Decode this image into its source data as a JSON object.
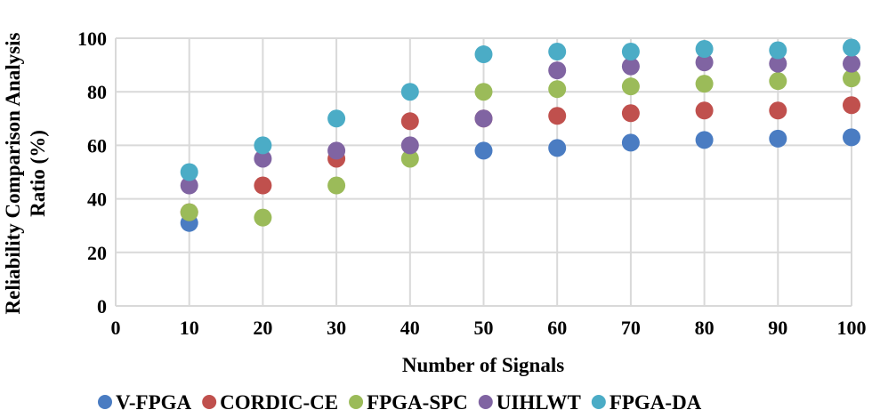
{
  "chart_data": {
    "type": "scatter",
    "title": "",
    "xlabel": "Number of Signals",
    "ylabel": [
      "Reliability Comparison Analysis",
      "Ratio (%)"
    ],
    "xlim": [
      0,
      100
    ],
    "ylim": [
      0,
      100
    ],
    "xticks": [
      0,
      10,
      20,
      30,
      40,
      50,
      60,
      70,
      80,
      90,
      100
    ],
    "yticks": [
      0,
      20,
      40,
      60,
      80,
      100
    ],
    "grid": true,
    "legend_position": "bottom",
    "x": [
      10,
      20,
      30,
      40,
      50,
      60,
      70,
      80,
      90,
      100
    ],
    "series": [
      {
        "name": "V-FPGA",
        "color": "#4a7cc2",
        "values": [
          31,
          null,
          null,
          null,
          58,
          59,
          61,
          62,
          62.5,
          63
        ]
      },
      {
        "name": "CORDIC-CE",
        "color": "#c0504d",
        "values": [
          35,
          45,
          55,
          69,
          70,
          71,
          72,
          73,
          73,
          75
        ]
      },
      {
        "name": "FPGA-SPC",
        "color": "#9bbb59",
        "values": [
          35,
          33,
          45,
          55,
          80,
          81,
          82,
          83,
          84,
          85
        ]
      },
      {
        "name": "UIHLWT",
        "color": "#8064a2",
        "values": [
          45,
          55,
          58,
          60,
          70,
          88,
          89.5,
          91,
          90.5,
          90.5
        ]
      },
      {
        "name": "FPGA-DA",
        "color": "#4bacc6",
        "values": [
          50,
          60,
          70,
          80,
          94,
          95,
          95,
          96,
          95.5,
          96.5
        ]
      }
    ]
  }
}
